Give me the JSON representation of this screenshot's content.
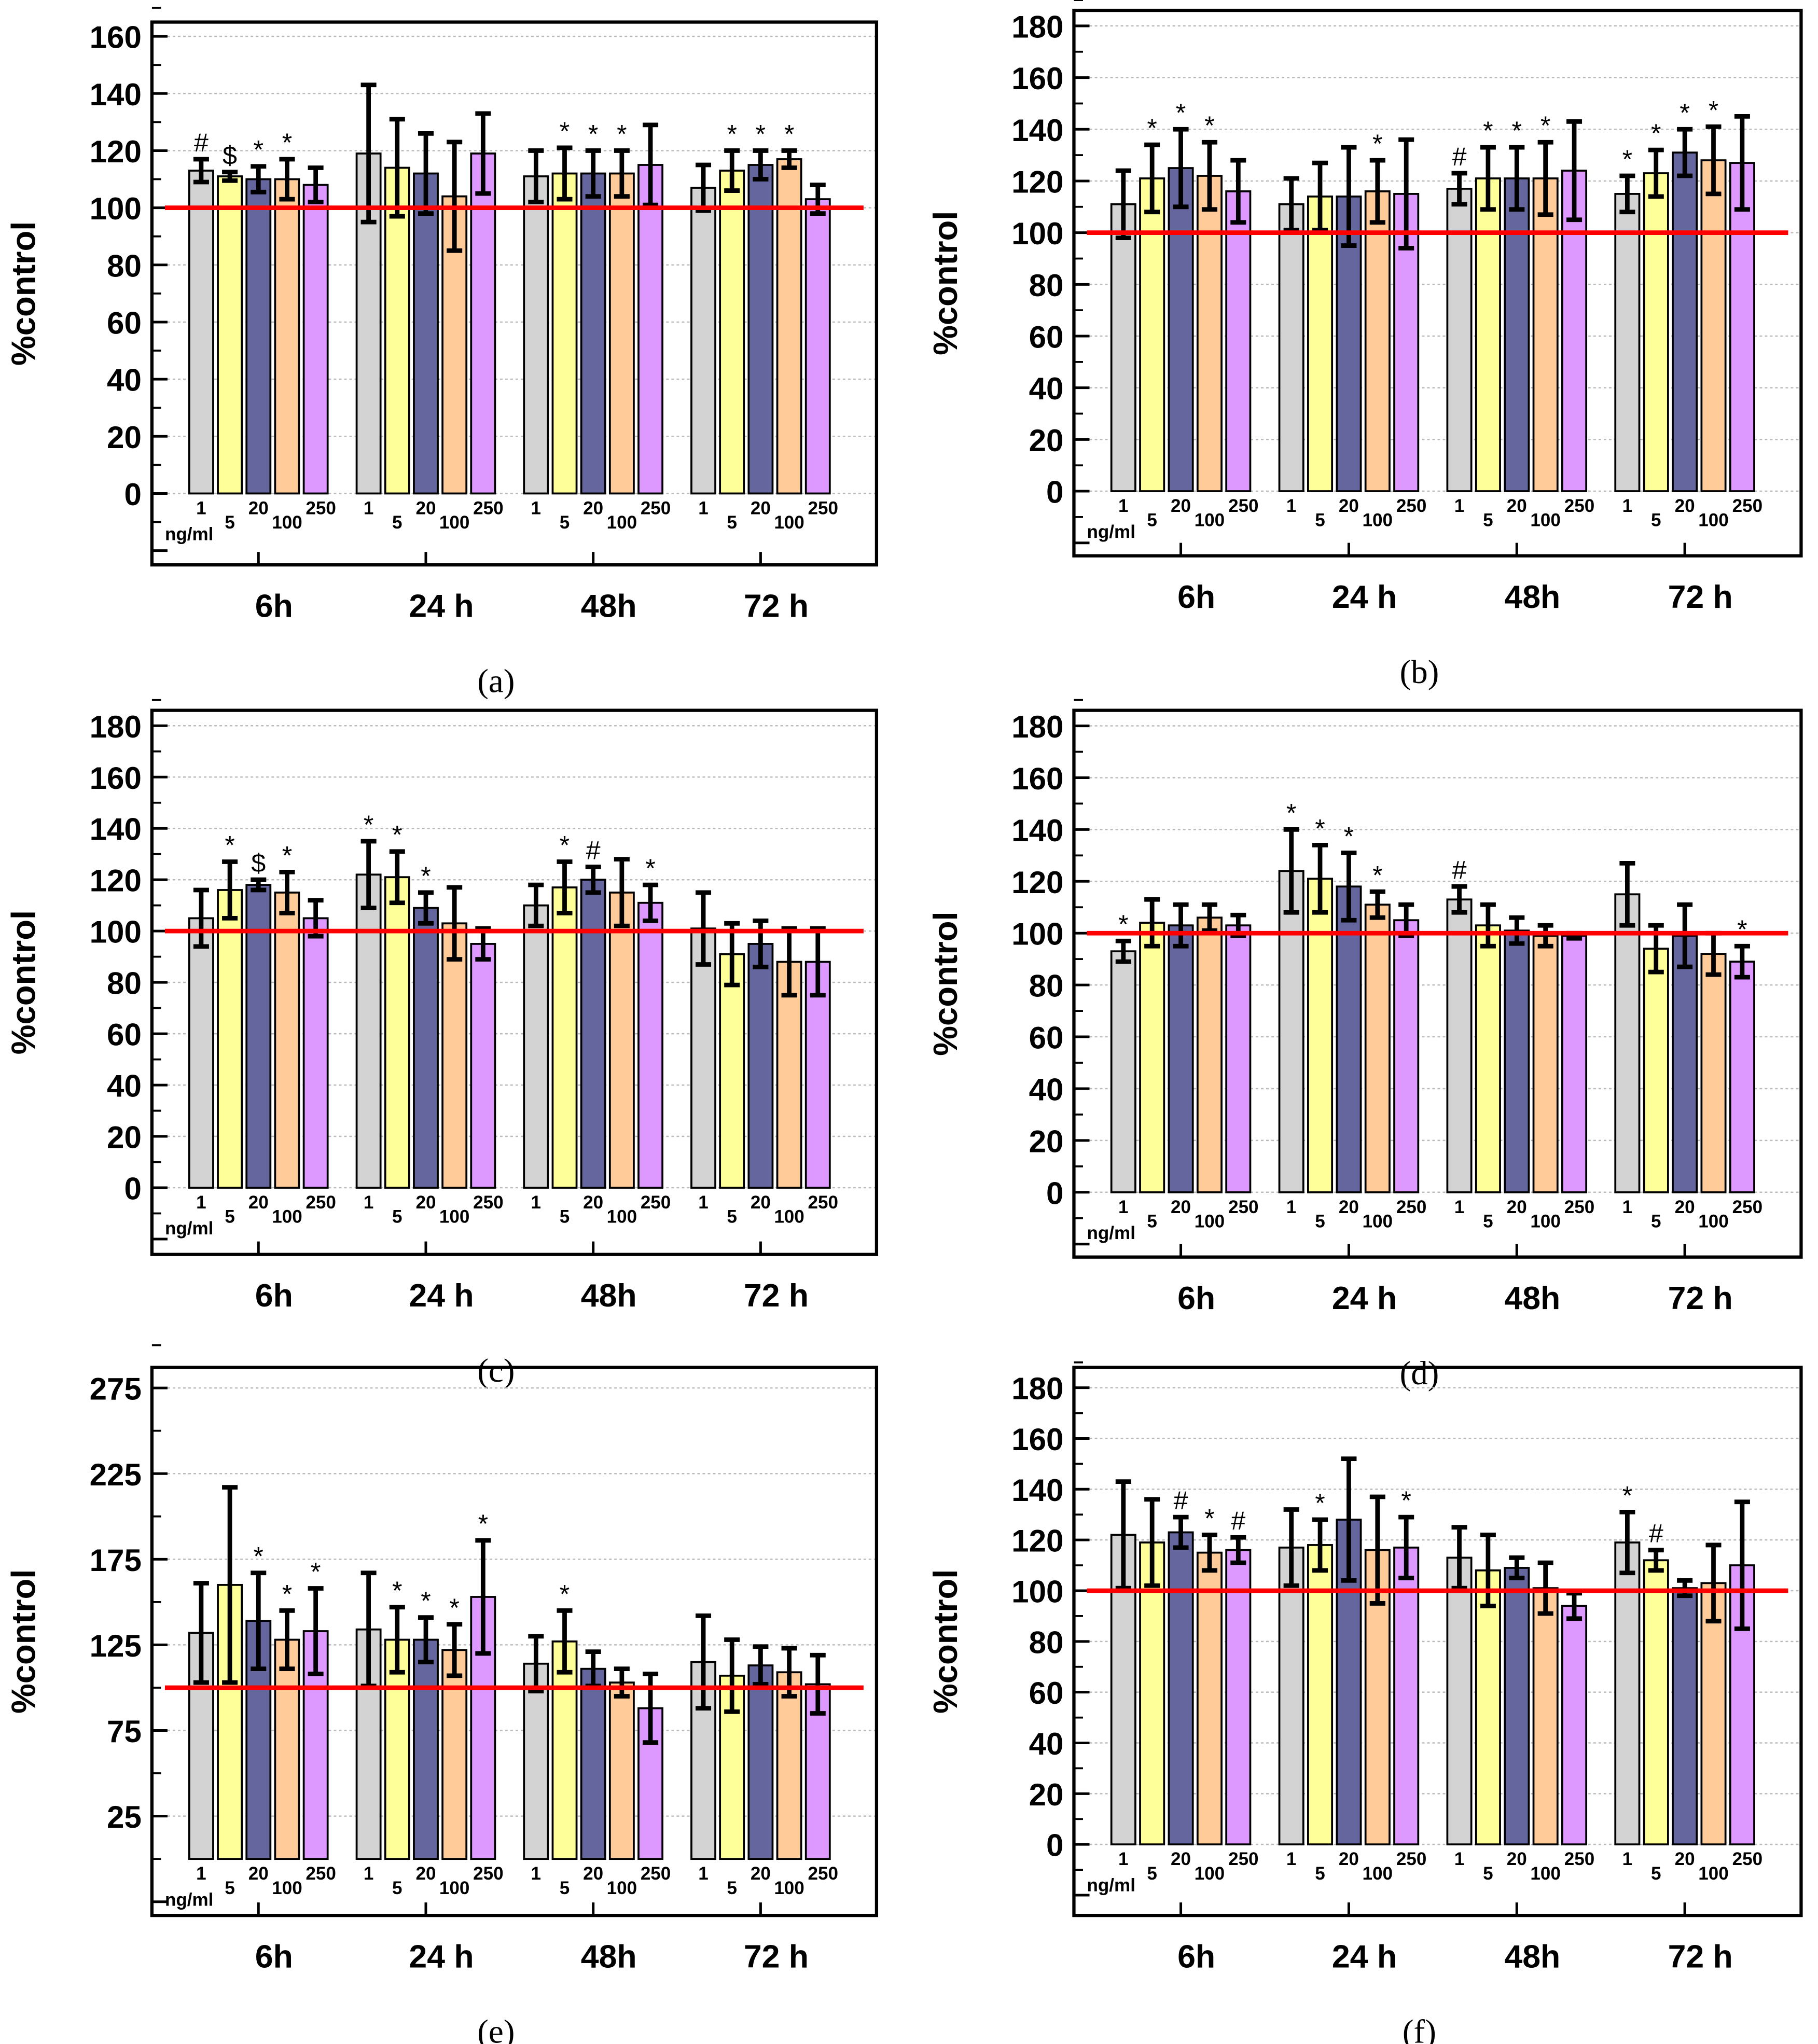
{
  "chart_data": {
    "type": "bar",
    "ylabel": "%control",
    "categories": [
      "6h",
      "24 h",
      "48h",
      "72 h"
    ],
    "dose_labels": [
      "1",
      "5",
      "20",
      "100",
      "250"
    ],
    "dose_unit": "ng/ml",
    "series_colors": [
      "#d3d3d3",
      "#ffff99",
      "#66669e",
      "#ffcc99",
      "#dd99ff"
    ],
    "reference_line": {
      "value": 100,
      "color": "#ff0000"
    },
    "panels": [
      {
        "label": "(a)",
        "ylim": [
          -25,
          165
        ],
        "yticks": [
          0,
          20,
          40,
          60,
          80,
          100,
          120,
          140,
          160
        ],
        "groups": [
          [
            [
              113,
              4,
              "#"
            ],
            [
              111,
              1.5,
              "$"
            ],
            [
              110,
              4.5,
              "*"
            ],
            [
              110,
              7,
              "*"
            ],
            [
              108,
              6,
              ""
            ]
          ],
          [
            [
              119,
              24,
              ""
            ],
            [
              114,
              17,
              ""
            ],
            [
              112,
              14,
              ""
            ],
            [
              104,
              19,
              ""
            ],
            [
              119,
              14,
              ""
            ]
          ],
          [
            [
              111,
              9,
              ""
            ],
            [
              112,
              9,
              "*"
            ],
            [
              112,
              8,
              "*"
            ],
            [
              112,
              8,
              "*"
            ],
            [
              115,
              14,
              ""
            ]
          ],
          [
            [
              107,
              8,
              ""
            ],
            [
              113,
              7,
              "*"
            ],
            [
              115,
              5,
              "*"
            ],
            [
              117,
              3,
              "*"
            ],
            [
              103,
              5,
              ""
            ]
          ]
        ]
      },
      {
        "label": "(b)",
        "ylim": [
          -25,
          186
        ],
        "yticks": [
          0,
          20,
          40,
          60,
          80,
          100,
          120,
          140,
          160,
          180
        ],
        "groups": [
          [
            [
              111,
              13,
              ""
            ],
            [
              121,
              13,
              "*"
            ],
            [
              125,
              15,
              "*"
            ],
            [
              122,
              13,
              "*"
            ],
            [
              116,
              12,
              ""
            ]
          ],
          [
            [
              111,
              10,
              ""
            ],
            [
              114,
              13,
              ""
            ],
            [
              114,
              19,
              ""
            ],
            [
              116,
              12,
              "*"
            ],
            [
              115,
              21,
              ""
            ]
          ],
          [
            [
              117,
              6,
              "#"
            ],
            [
              121,
              12,
              "*"
            ],
            [
              121,
              12,
              "*"
            ],
            [
              121,
              14,
              "*"
            ],
            [
              124,
              19,
              ""
            ]
          ],
          [
            [
              115,
              7,
              "*"
            ],
            [
              123,
              9,
              "*"
            ],
            [
              131,
              9,
              "*"
            ],
            [
              128,
              13,
              "*"
            ],
            [
              127,
              18,
              ""
            ]
          ]
        ]
      },
      {
        "label": "(c)",
        "ylim": [
          -26,
          186
        ],
        "yticks": [
          0,
          20,
          40,
          60,
          80,
          100,
          120,
          140,
          160,
          180
        ],
        "groups": [
          [
            [
              105,
              11,
              ""
            ],
            [
              116,
              11,
              "*"
            ],
            [
              118,
              2,
              "$"
            ],
            [
              115,
              8,
              "*"
            ],
            [
              105,
              7,
              ""
            ]
          ],
          [
            [
              122,
              13,
              "*"
            ],
            [
              121,
              10,
              "*"
            ],
            [
              109,
              6,
              "*"
            ],
            [
              103,
              14,
              ""
            ],
            [
              95,
              6,
              ""
            ]
          ],
          [
            [
              110,
              8,
              ""
            ],
            [
              117,
              10,
              "*"
            ],
            [
              120,
              5,
              "#"
            ],
            [
              115,
              13,
              ""
            ],
            [
              111,
              7,
              "*"
            ]
          ],
          [
            [
              101,
              14,
              ""
            ],
            [
              91,
              12,
              ""
            ],
            [
              95,
              9,
              ""
            ],
            [
              88,
              13,
              ""
            ],
            [
              88,
              13,
              ""
            ]
          ]
        ]
      },
      {
        "label": "(d)",
        "ylim": [
          -25,
          186
        ],
        "yticks": [
          0,
          20,
          40,
          60,
          80,
          100,
          120,
          140,
          160,
          180
        ],
        "groups": [
          [
            [
              93,
              4,
              "*"
            ],
            [
              104,
              9,
              ""
            ],
            [
              103,
              8,
              ""
            ],
            [
              106,
              5,
              ""
            ],
            [
              103,
              4,
              ""
            ]
          ],
          [
            [
              124,
              16,
              "*"
            ],
            [
              121,
              13,
              "*"
            ],
            [
              118,
              13,
              "*"
            ],
            [
              111,
              5,
              "*"
            ],
            [
              105,
              6,
              ""
            ]
          ],
          [
            [
              113,
              5,
              "#"
            ],
            [
              103,
              8,
              ""
            ],
            [
              101,
              5,
              ""
            ],
            [
              99,
              4,
              ""
            ],
            [
              99,
              1,
              ""
            ]
          ],
          [
            [
              115,
              12,
              ""
            ],
            [
              94,
              9,
              ""
            ],
            [
              99,
              12,
              ""
            ],
            [
              92,
              8,
              ""
            ],
            [
              89,
              6,
              "*"
            ]
          ]
        ]
      },
      {
        "label": "(e)",
        "ylim": [
          -33,
          287
        ],
        "yticks": [
          25,
          75,
          125,
          175,
          225,
          275
        ],
        "groups": [
          [
            [
              132,
              29,
              ""
            ],
            [
              160,
              57,
              ""
            ],
            [
              139,
              28,
              "*"
            ],
            [
              128,
              17,
              "*"
            ],
            [
              133,
              25,
              "*"
            ]
          ],
          [
            [
              134,
              33,
              ""
            ],
            [
              128,
              19,
              "*"
            ],
            [
              128,
              13,
              "*"
            ],
            [
              122,
              15,
              "*"
            ],
            [
              153,
              33,
              "*"
            ]
          ],
          [
            [
              114,
              16,
              ""
            ],
            [
              127,
              18,
              "*"
            ],
            [
              111,
              10,
              ""
            ],
            [
              103,
              8,
              ""
            ],
            [
              88,
              20,
              ""
            ]
          ],
          [
            [
              115,
              27,
              ""
            ],
            [
              107,
              21,
              ""
            ],
            [
              113,
              11,
              ""
            ],
            [
              109,
              14,
              ""
            ],
            [
              102,
              17,
              ""
            ]
          ]
        ]
      },
      {
        "label": "(f)",
        "ylim": [
          -28,
          188
        ],
        "yticks": [
          0,
          20,
          40,
          60,
          80,
          100,
          120,
          140,
          160,
          180
        ],
        "groups": [
          [
            [
              122,
              21,
              ""
            ],
            [
              119,
              17,
              ""
            ],
            [
              123,
              6,
              "#"
            ],
            [
              115,
              7,
              "*"
            ],
            [
              116,
              5,
              "#"
            ]
          ],
          [
            [
              117,
              15,
              ""
            ],
            [
              118,
              10,
              "*"
            ],
            [
              128,
              24,
              ""
            ],
            [
              116,
              21,
              ""
            ],
            [
              117,
              12,
              "*"
            ]
          ],
          [
            [
              113,
              12,
              ""
            ],
            [
              108,
              14,
              ""
            ],
            [
              109,
              4,
              ""
            ],
            [
              101,
              10,
              ""
            ],
            [
              94,
              5,
              ""
            ]
          ],
          [
            [
              119,
              12,
              "*"
            ],
            [
              112,
              4,
              "#"
            ],
            [
              101,
              3,
              ""
            ],
            [
              103,
              15,
              ""
            ],
            [
              110,
              25,
              ""
            ]
          ]
        ]
      }
    ]
  }
}
